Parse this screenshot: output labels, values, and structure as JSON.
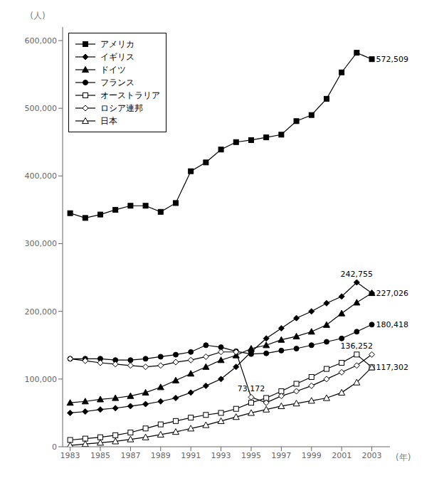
{
  "chart_data": {
    "type": "line",
    "x_label": "(年)",
    "y_label": "(人)",
    "x": [
      1983,
      1984,
      1985,
      1986,
      1987,
      1988,
      1989,
      1990,
      1991,
      1992,
      1993,
      1994,
      1995,
      1996,
      1997,
      1998,
      1999,
      2000,
      2001,
      2002,
      2003
    ],
    "series": [
      {
        "name": "アメリカ",
        "color": "#000000",
        "marker": "square",
        "values": [
          345000,
          338000,
          343000,
          350000,
          356000,
          356000,
          347000,
          360000,
          407000,
          420000,
          439000,
          450000,
          453000,
          457000,
          461000,
          481000,
          490000,
          514000,
          553000,
          582000,
          572509
        ]
      },
      {
        "name": "イギリス",
        "color": "#000000",
        "marker": "diamond",
        "values": [
          50000,
          52000,
          55000,
          57000,
          60000,
          63000,
          67000,
          72000,
          80000,
          90000,
          100000,
          118000,
          140000,
          160000,
          175000,
          190000,
          200000,
          212000,
          222000,
          242755,
          227026
        ]
      },
      {
        "name": "ドイツ",
        "color": "#000000",
        "marker": "triangle",
        "values": [
          65000,
          67000,
          70000,
          72000,
          75000,
          80000,
          88000,
          98000,
          108000,
          118000,
          128000,
          135000,
          145000,
          150000,
          158000,
          163000,
          170000,
          180000,
          197000,
          213000,
          227026
        ]
      },
      {
        "name": "フランス",
        "color": "#000000",
        "marker": "circle",
        "values": [
          130000,
          130000,
          130000,
          128000,
          128000,
          130000,
          133000,
          136000,
          140000,
          150000,
          147000,
          141000,
          137000,
          138000,
          142000,
          145000,
          150000,
          155000,
          160000,
          170000,
          180418
        ]
      },
      {
        "name": "オーストラリア",
        "color": "#000000",
        "marker": "open_square",
        "values": [
          10000,
          12000,
          14000,
          17000,
          21000,
          27000,
          33000,
          38000,
          43000,
          47000,
          50000,
          56000,
          65000,
          72000,
          82000,
          93000,
          103000,
          115000,
          124000,
          136252,
          117302
        ]
      },
      {
        "name": "ロシア連邦",
        "color": "#000000",
        "marker": "open_diamond",
        "values": [
          130000,
          127000,
          124000,
          122000,
          120000,
          118000,
          120000,
          125000,
          128000,
          133000,
          140000,
          140000,
          73172,
          65000,
          75000,
          82000,
          90000,
          100000,
          110000,
          120000,
          136252
        ]
      },
      {
        "name": "日本",
        "color": "#000000",
        "marker": "open_triangle",
        "values": [
          2000,
          4000,
          6000,
          8000,
          11000,
          14000,
          18000,
          22000,
          27000,
          32000,
          38000,
          44000,
          50000,
          55000,
          60000,
          64000,
          68000,
          72000,
          80000,
          95000,
          117302
        ]
      }
    ],
    "annotations": [
      {
        "text": "572,509",
        "x": 2003,
        "y": 572509
      },
      {
        "text": "242,755",
        "x": 2002,
        "y": 242755
      },
      {
        "text": "227,026",
        "x": 2003,
        "y": 227026
      },
      {
        "text": "180,418",
        "x": 2003,
        "y": 180418
      },
      {
        "text": "136,252",
        "x": 2002,
        "y": 136252
      },
      {
        "text": "73,172",
        "x": 1995,
        "y": 73172
      },
      {
        "text": "117,302",
        "x": 2003,
        "y": 117302
      }
    ],
    "xlim": [
      1982.5,
      2004.2
    ],
    "xticks": [
      1983,
      1985,
      1987,
      1989,
      1991,
      1993,
      1995,
      1997,
      1999,
      2001,
      2003
    ],
    "ylim": [
      0,
      620000
    ],
    "yticks": [
      0,
      {
        "value": 100000,
        "label": "100,000"
      },
      {
        "value": 200000,
        "label": "200,000"
      },
      {
        "value": 300000,
        "label": "300,000"
      },
      {
        "value": 400000,
        "label": "400,000"
      },
      {
        "value": 500000,
        "label": "500,000"
      },
      {
        "value": 600000,
        "label": "600,000"
      }
    ],
    "legend": "upper left"
  }
}
